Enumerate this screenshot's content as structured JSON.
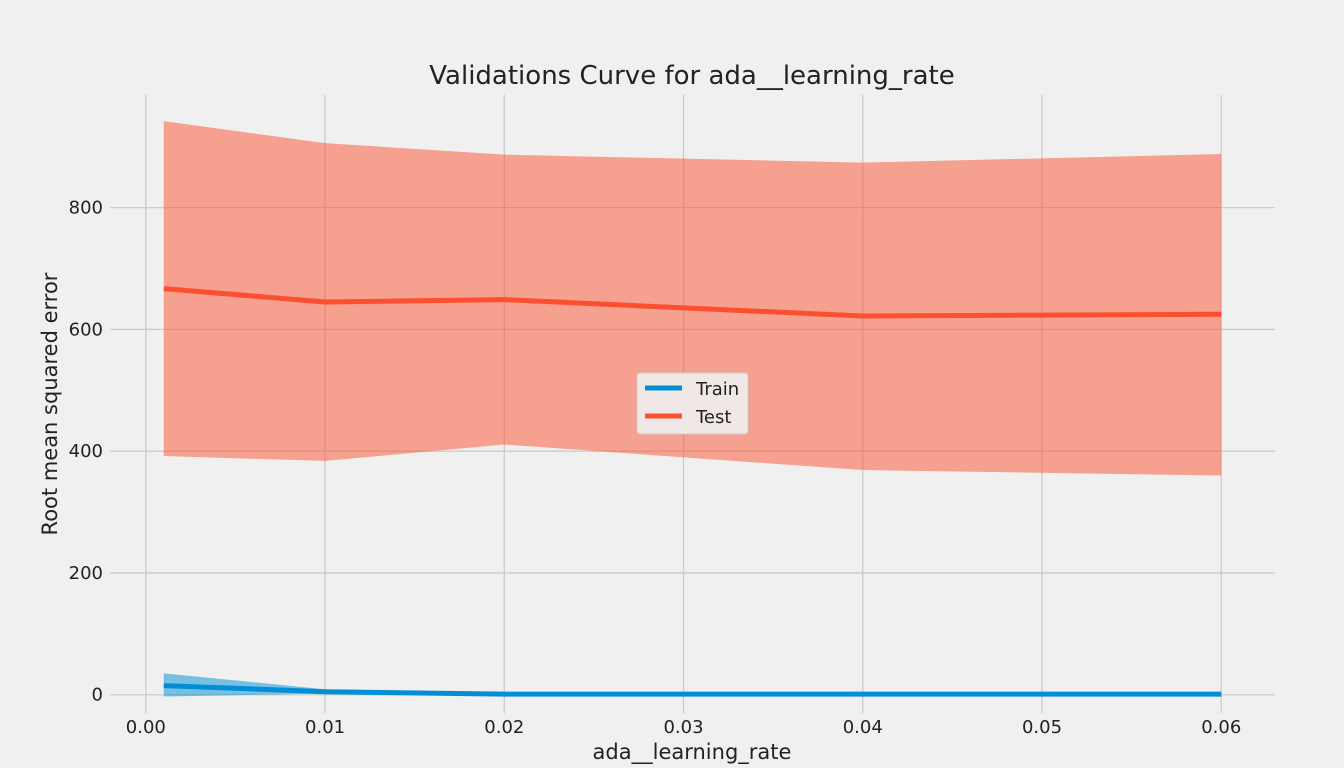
{
  "chart_data": {
    "type": "line",
    "title": "Validations Curve for ada__learning_rate",
    "xlabel": "ada__learning_rate",
    "ylabel": "Root mean squared error",
    "x": [
      0.001,
      0.01,
      0.02,
      0.04,
      0.06
    ],
    "xlim": [
      -0.002,
      0.063
    ],
    "ylim": [
      -30,
      985
    ],
    "x_ticks": [
      0.0,
      0.01,
      0.02,
      0.03,
      0.04,
      0.05,
      0.06
    ],
    "x_tick_labels": [
      "0.00",
      "0.01",
      "0.02",
      "0.03",
      "0.04",
      "0.05",
      "0.06"
    ],
    "y_ticks": [
      0,
      200,
      400,
      600,
      800
    ],
    "y_tick_labels": [
      "0",
      "200",
      "400",
      "600",
      "800"
    ],
    "grid": true,
    "legend": {
      "placement": "center"
    },
    "series": [
      {
        "name": "Train",
        "color": "#008fd5",
        "band_color": "#008fd5",
        "values": [
          15,
          5,
          1,
          1,
          1
        ],
        "lower": [
          -3,
          2,
          0,
          0,
          0
        ],
        "upper": [
          35,
          9,
          2,
          2,
          2
        ]
      },
      {
        "name": "Test",
        "color": "#fc4f30",
        "band_color": "#fc4f30",
        "values": [
          667,
          645,
          649,
          622,
          625
        ],
        "lower": [
          392,
          384,
          411,
          369,
          360
        ],
        "upper": [
          942,
          906,
          887,
          874,
          888
        ]
      }
    ]
  }
}
